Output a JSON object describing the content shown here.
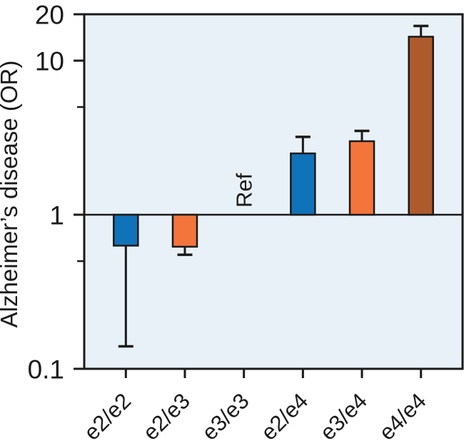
{
  "figure": {
    "kind": "scientific-bar-figure",
    "background": "#ffffff"
  },
  "chart_data": {
    "type": "bar",
    "title": "",
    "xlabel": "",
    "ylabel": "Alzheimer’s disease (OR)",
    "yscale": "log",
    "ylim": [
      0.1,
      20
    ],
    "yticks_major": [
      20,
      10,
      1,
      0.1
    ],
    "ytick_labels": [
      "20",
      "10",
      "1",
      "0.1"
    ],
    "yticks_minor": [
      5,
      0.5
    ],
    "reference_value": 1,
    "ref_label": "Ref",
    "grid": "off",
    "legend": null,
    "categories": [
      "e2/e2",
      "e2/e3",
      "e3/e3",
      "e2/e4",
      "e3/e4",
      "e4/e4"
    ],
    "bars": [
      {
        "category": "e2/e2",
        "odds_ratio": 0.63,
        "ci_limit": 0.14,
        "color": "#1072b8",
        "is_reference": false
      },
      {
        "category": "e2/e3",
        "odds_ratio": 0.62,
        "ci_limit": 0.55,
        "color": "#f3753c",
        "is_reference": false
      },
      {
        "category": "e3/e3",
        "odds_ratio": 1.0,
        "ci_limit": null,
        "color": null,
        "is_reference": true
      },
      {
        "category": "e2/e4",
        "odds_ratio": 2.5,
        "ci_limit": 3.2,
        "color": "#1072b8",
        "is_reference": false
      },
      {
        "category": "e3/e4",
        "odds_ratio": 3.0,
        "ci_limit": 3.5,
        "color": "#f3753c",
        "is_reference": false
      },
      {
        "category": "e4/e4",
        "odds_ratio": 14.3,
        "ci_limit": 16.8,
        "color": "#ad5a2d",
        "is_reference": false
      }
    ],
    "colors": {
      "plot_background": "#e9f1f8",
      "axis": "#1a1a1a",
      "blue_bar": "#1072b8",
      "orange_bar": "#f3753c",
      "brown_bar": "#ad5a2d"
    }
  }
}
